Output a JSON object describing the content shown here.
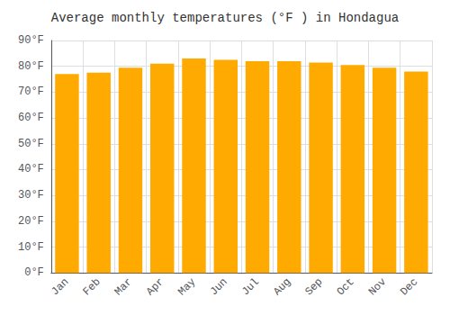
{
  "chart_data": {
    "type": "bar",
    "title": "Average monthly temperatures (°F ) in Hondagua",
    "categories": [
      "Jan",
      "Feb",
      "Mar",
      "Apr",
      "May",
      "Jun",
      "Jul",
      "Aug",
      "Sep",
      "Oct",
      "Nov",
      "Dec"
    ],
    "values": [
      77,
      77.5,
      79.5,
      81,
      83,
      82.5,
      82,
      82,
      81.5,
      80.5,
      79.5,
      78
    ],
    "color": "#FFAA00",
    "ylim": [
      0,
      90
    ],
    "yticks": [
      {
        "value": 0,
        "label": "0°F"
      },
      {
        "value": 10,
        "label": "10°F"
      },
      {
        "value": 20,
        "label": "20°F"
      },
      {
        "value": 30,
        "label": "30°F"
      },
      {
        "value": 40,
        "label": "40°F"
      },
      {
        "value": 50,
        "label": "50°F"
      },
      {
        "value": 60,
        "label": "60°F"
      },
      {
        "value": 70,
        "label": "70°F"
      },
      {
        "value": 80,
        "label": "80°F"
      },
      {
        "value": 90,
        "label": "90°F"
      }
    ],
    "grid": true
  }
}
